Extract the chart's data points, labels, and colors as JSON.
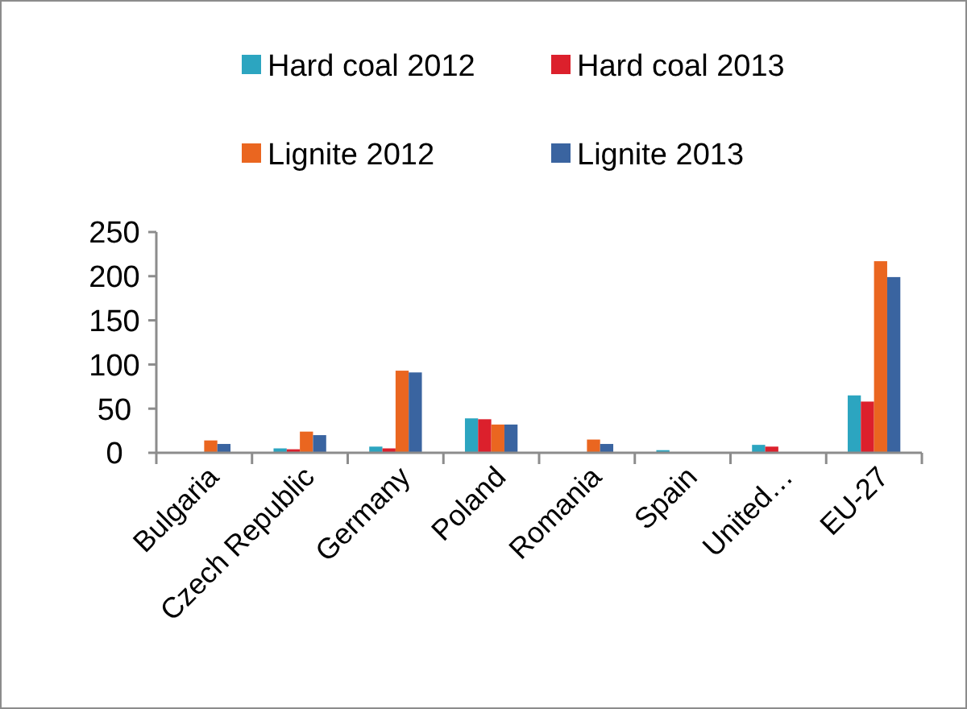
{
  "chart_data": {
    "type": "bar",
    "categories": [
      "Bulgaria",
      "Czech Republic",
      "Germany",
      "Poland",
      "Romania",
      "Spain",
      "United…",
      "EU-27"
    ],
    "series": [
      {
        "name": "Hard coal 2012",
        "color": "#2ca5c0",
        "values": [
          0,
          5,
          7,
          39,
          0,
          3,
          9,
          65
        ]
      },
      {
        "name": "Hard coal 2013",
        "color": "#dc202c",
        "values": [
          0,
          4,
          5,
          38,
          0,
          0,
          7,
          58
        ]
      },
      {
        "name": "Lignite 2012",
        "color": "#ea6620",
        "values": [
          14,
          24,
          93,
          32,
          15,
          0,
          0,
          217
        ]
      },
      {
        "name": "Lignite 2013",
        "color": "#3a64a0",
        "values": [
          10,
          20,
          91,
          32,
          10,
          0,
          0,
          199
        ]
      }
    ],
    "ylim": [
      0,
      250
    ],
    "yticks": [
      0,
      50,
      100,
      150,
      200,
      250
    ],
    "grid": false,
    "legend": "top"
  }
}
